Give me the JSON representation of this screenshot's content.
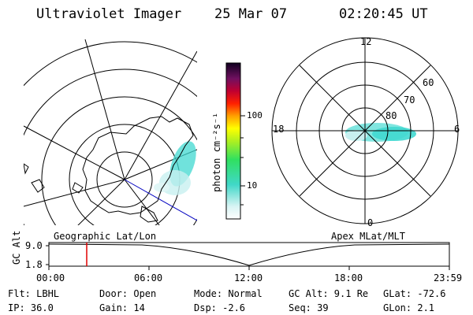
{
  "header": {
    "instrument": "Ultraviolet Imager",
    "date": "25 Mar 07",
    "time": "02:20:45 UT"
  },
  "colorbar": {
    "unit_label": "photon cm⁻²s⁻¹",
    "ticks": [
      "100",
      "10"
    ]
  },
  "polar_plot": {
    "mlt_labels": {
      "top": "12",
      "left": "18",
      "right": "6",
      "bottom": "0"
    },
    "lat_labels": [
      "60",
      "70",
      "80"
    ]
  },
  "timeline": {
    "left_caption": "Geographic Lat/Lon",
    "right_caption": "Apex MLat/MLT",
    "y_axis_label": "GC Alt",
    "y_ticks": [
      "9.0",
      "1.8"
    ],
    "x_ticks": [
      "00:00",
      "06:00",
      "12:00",
      "18:00",
      "23:59"
    ],
    "marker_time": "02:20:45"
  },
  "status": {
    "flt": "Flt: LBHL",
    "ip": "IP: 36.0",
    "door": "Door: Open",
    "gain": "Gain: 14",
    "mode": "Mode: Normal",
    "dsp": "Dsp:    -2.6",
    "gc_alt": "GC Alt: 9.1 Re",
    "seq": "Seq: 39",
    "glat": "GLat:  -72.6",
    "glon": "GLon:    2.1"
  },
  "colors": {
    "marker": "#e00000",
    "aurora": "#40d8d0",
    "track": "#0000c0"
  }
}
